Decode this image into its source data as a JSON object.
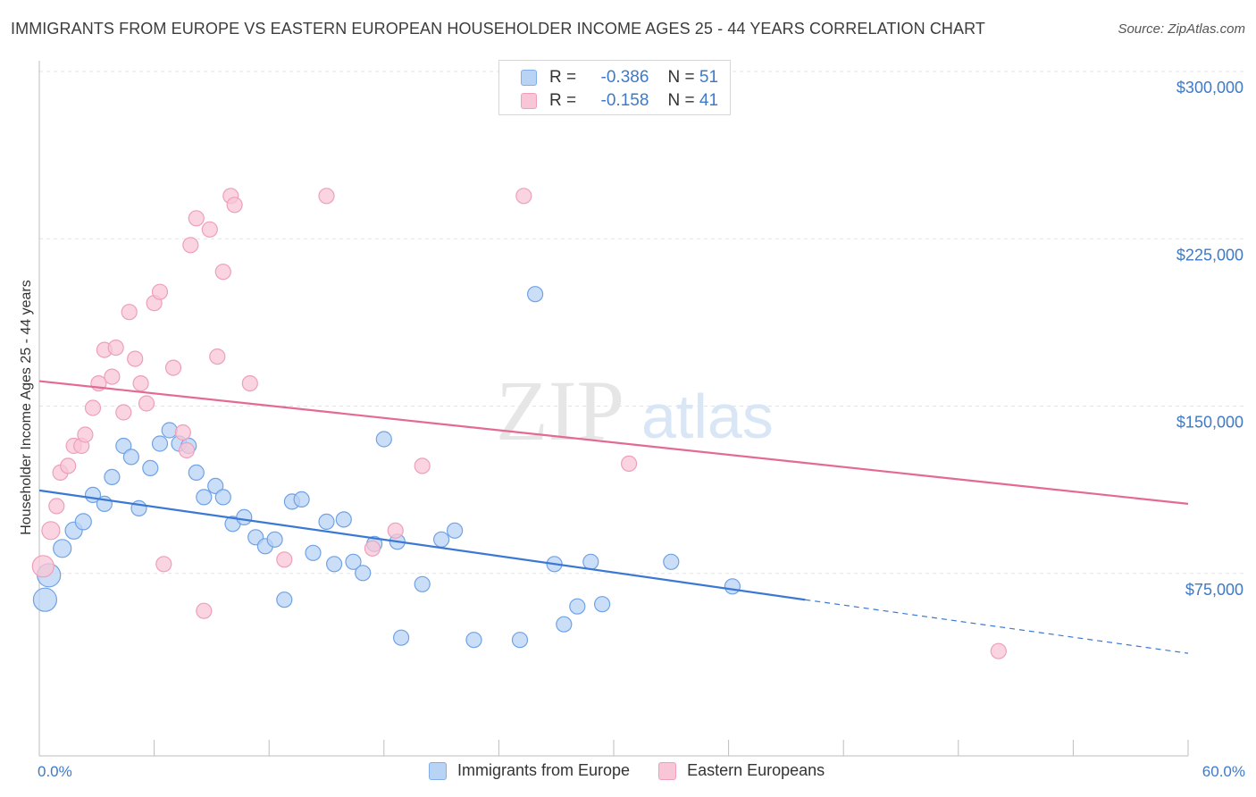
{
  "title": "IMMIGRANTS FROM EUROPE VS EASTERN EUROPEAN HOUSEHOLDER INCOME AGES 25 - 44 YEARS CORRELATION CHART",
  "source": "Source: ZipAtlas.com",
  "watermark": {
    "zip": "ZIP",
    "atlas": "atlas"
  },
  "colors": {
    "blue": "#3b78d4",
    "blue_fill": "#b9d3f5",
    "pink": "#e46a92",
    "pink_fill": "#f8c6d6",
    "axis_text": "#3d7ac8"
  },
  "legend_top": [
    {
      "r_label": "R =",
      "r_value": "-0.386",
      "n_label": "N =",
      "n_value": "51"
    },
    {
      "r_label": "R =",
      "r_value": "-0.158",
      "n_label": "N =",
      "n_value": "41"
    }
  ],
  "chart_data": {
    "type": "scatter",
    "ylabel": "Householder Income Ages 25 - 44 years",
    "xlim": [
      0,
      60
    ],
    "ylim": [
      0,
      310000
    ],
    "x_tick_labels": {
      "min": "0.0%",
      "max": "60.0%"
    },
    "y_ticks": [
      {
        "value": 75000,
        "label": "$75,000"
      },
      {
        "value": 150000,
        "label": "$150,000"
      },
      {
        "value": 225000,
        "label": "$225,000"
      },
      {
        "value": 300000,
        "label": "$300,000"
      }
    ],
    "series": [
      {
        "name": "Immigrants from Europe",
        "color": "#3b78d4",
        "trend": {
          "x0": 0,
          "y0": 119000,
          "x1": 40,
          "y1": 70000,
          "dash_to_x": 60,
          "dash_to_y": 46000
        },
        "points": [
          [
            0.3,
            70000,
            22
          ],
          [
            0.5,
            81000,
            22
          ],
          [
            1.2,
            93000,
            16
          ],
          [
            1.8,
            101000,
            15
          ],
          [
            2.3,
            105000,
            14
          ],
          [
            2.8,
            117000,
            13
          ],
          [
            3.4,
            113000,
            13
          ],
          [
            3.8,
            125000,
            13
          ],
          [
            4.4,
            139000,
            13
          ],
          [
            4.8,
            134000,
            13
          ],
          [
            5.2,
            111000,
            13
          ],
          [
            5.8,
            129000,
            13
          ],
          [
            6.3,
            140000,
            13
          ],
          [
            6.8,
            146000,
            13
          ],
          [
            7.3,
            140000,
            13
          ],
          [
            7.8,
            139000,
            13
          ],
          [
            8.2,
            127000,
            13
          ],
          [
            8.6,
            116000,
            13
          ],
          [
            9.2,
            121000,
            13
          ],
          [
            9.6,
            116000,
            13
          ],
          [
            10.1,
            104000,
            13
          ],
          [
            10.7,
            107000,
            13
          ],
          [
            11.3,
            98000,
            13
          ],
          [
            11.8,
            94000,
            13
          ],
          [
            12.3,
            97000,
            13
          ],
          [
            12.8,
            70000,
            13
          ],
          [
            13.2,
            114000,
            13
          ],
          [
            13.7,
            115000,
            13
          ],
          [
            14.3,
            91000,
            13
          ],
          [
            15.0,
            105000,
            13
          ],
          [
            15.4,
            86000,
            13
          ],
          [
            15.9,
            106000,
            13
          ],
          [
            16.4,
            87000,
            13
          ],
          [
            16.9,
            82000,
            13
          ],
          [
            17.5,
            95000,
            13
          ],
          [
            18.0,
            142000,
            13
          ],
          [
            18.7,
            96000,
            13
          ],
          [
            18.9,
            53000,
            13
          ],
          [
            20.0,
            77000,
            13
          ],
          [
            21.0,
            97000,
            13
          ],
          [
            21.7,
            101000,
            13
          ],
          [
            22.7,
            52000,
            13
          ],
          [
            25.1,
            52000,
            13
          ],
          [
            25.9,
            207000,
            13
          ],
          [
            26.9,
            86000,
            13
          ],
          [
            27.4,
            59000,
            13
          ],
          [
            28.1,
            67000,
            13
          ],
          [
            28.8,
            87000,
            13
          ],
          [
            29.4,
            68000,
            13
          ],
          [
            33.0,
            87000,
            13
          ],
          [
            36.2,
            76000,
            13
          ]
        ]
      },
      {
        "name": "Eastern Europeans",
        "color": "#e46a92",
        "trend": {
          "x0": 0,
          "y0": 168000,
          "x1": 60,
          "y1": 113000
        },
        "points": [
          [
            0.2,
            85000,
            20
          ],
          [
            0.6,
            101000,
            16
          ],
          [
            0.9,
            112000,
            13
          ],
          [
            1.1,
            127000,
            13
          ],
          [
            1.5,
            130000,
            13
          ],
          [
            1.8,
            139000,
            13
          ],
          [
            2.2,
            139000,
            13
          ],
          [
            2.4,
            144000,
            13
          ],
          [
            2.8,
            156000,
            13
          ],
          [
            3.1,
            167000,
            13
          ],
          [
            3.4,
            182000,
            13
          ],
          [
            3.8,
            170000,
            13
          ],
          [
            4.0,
            183000,
            13
          ],
          [
            4.4,
            154000,
            13
          ],
          [
            4.7,
            199000,
            13
          ],
          [
            5.0,
            178000,
            13
          ],
          [
            5.3,
            167000,
            13
          ],
          [
            5.6,
            158000,
            13
          ],
          [
            6.0,
            203000,
            13
          ],
          [
            6.3,
            208000,
            13
          ],
          [
            6.5,
            86000,
            13
          ],
          [
            7.0,
            174000,
            13
          ],
          [
            7.5,
            145000,
            13
          ],
          [
            7.7,
            137000,
            13
          ],
          [
            7.9,
            229000,
            13
          ],
          [
            8.2,
            241000,
            13
          ],
          [
            8.9,
            236000,
            13
          ],
          [
            8.6,
            65000,
            13
          ],
          [
            9.3,
            179000,
            13
          ],
          [
            9.6,
            217000,
            13
          ],
          [
            10.0,
            251000,
            13
          ],
          [
            10.2,
            247000,
            13
          ],
          [
            11.0,
            167000,
            13
          ],
          [
            12.8,
            88000,
            13
          ],
          [
            15.0,
            251000,
            13
          ],
          [
            17.4,
            93000,
            13
          ],
          [
            18.6,
            101000,
            13
          ],
          [
            20.0,
            130000,
            13
          ],
          [
            25.3,
            251000,
            13
          ],
          [
            30.8,
            131000,
            13
          ],
          [
            50.1,
            47000,
            13
          ]
        ]
      }
    ]
  }
}
